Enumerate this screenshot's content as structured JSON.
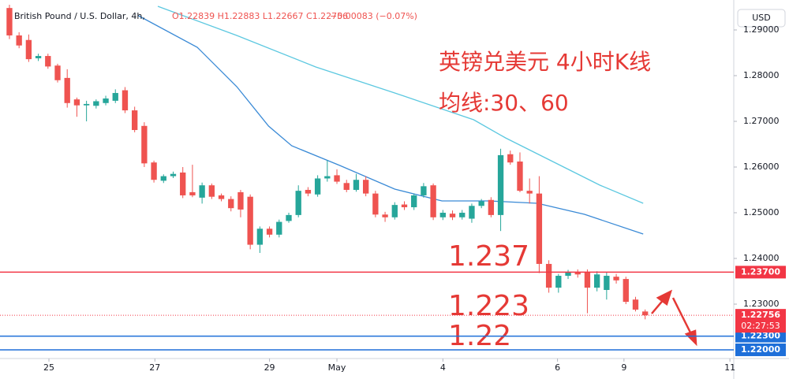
{
  "chart_data": {
    "type": "candlestick",
    "header": {
      "symbol": "British Pound / U.S. Dollar, 4h,",
      "ohlc": "O1.22839 H1.22883 L1.22667 C1.22756",
      "change": "−0.00083 (−0.07%)"
    },
    "currency": "USD",
    "annotations": {
      "title": "英镑兑美元 4小时K线",
      "subtitle": "均线:30、60",
      "level1": "1.237",
      "level2": "1.223",
      "level3": "1.22"
    },
    "up_color": "#26a69a",
    "down_color": "#ef5350",
    "open": [
      1.2948,
      1.2888,
      1.2878,
      1.2838,
      1.2843,
      1.2822,
      1.2795,
      1.2748,
      1.2735,
      1.2734,
      1.274,
      1.2745,
      1.2768,
      1.2724,
      1.269,
      1.261,
      1.257,
      1.258,
      1.2588,
      1.2545,
      1.2533,
      1.256,
      1.2538,
      1.253,
      1.2545,
      1.2535,
      1.243,
      1.2465,
      1.2452,
      1.2482,
      1.2495,
      1.255,
      1.254,
      1.2575,
      1.2582,
      1.2565,
      1.255,
      1.2572,
      1.2542,
      1.2496,
      1.249,
      1.2518,
      1.2512,
      1.2538,
      1.256,
      1.249,
      1.2498,
      1.249,
      1.2487,
      1.2515,
      1.2528,
      1.2495,
      1.2628,
      1.2612,
      1.2548,
      1.2542,
      1.2388,
      1.2336,
      1.2362,
      1.237,
      1.237,
      1.2336,
      1.2331,
      1.236,
      1.2355,
      1.231,
      1.22839
    ],
    "high": [
      1.2955,
      1.2895,
      1.289,
      1.2848,
      1.2848,
      1.2826,
      1.2814,
      1.2752,
      1.2745,
      1.2748,
      1.2756,
      1.277,
      1.2775,
      1.2732,
      1.2698,
      1.2614,
      1.2584,
      1.259,
      1.26,
      1.2605,
      1.2566,
      1.2564,
      1.2542,
      1.2536,
      1.255,
      1.254,
      1.247,
      1.247,
      1.2485,
      1.25,
      1.256,
      1.2556,
      1.2582,
      1.2615,
      1.2595,
      1.2572,
      1.2585,
      1.258,
      1.2548,
      1.2502,
      1.2523,
      1.2525,
      1.2542,
      1.2565,
      1.2564,
      1.2506,
      1.2505,
      1.2506,
      1.252,
      1.253,
      1.2534,
      1.264,
      1.2636,
      1.2632,
      1.2575,
      1.258,
      1.2396,
      1.2366,
      1.2375,
      1.2376,
      1.2376,
      1.2372,
      1.237,
      1.2366,
      1.236,
      1.2316,
      1.22883
    ],
    "low": [
      1.288,
      1.286,
      1.283,
      1.2832,
      1.2815,
      1.2785,
      1.273,
      1.271,
      1.27,
      1.2728,
      1.2735,
      1.274,
      1.2718,
      1.2676,
      1.26,
      1.2566,
      1.2565,
      1.2576,
      1.2532,
      1.2534,
      1.252,
      1.253,
      1.2525,
      1.2503,
      1.249,
      1.242,
      1.2412,
      1.2446,
      1.2446,
      1.2478,
      1.249,
      1.2536,
      1.2535,
      1.2568,
      1.2563,
      1.2545,
      1.2546,
      1.2536,
      1.249,
      1.248,
      1.2485,
      1.2506,
      1.2506,
      1.2533,
      1.2484,
      1.2484,
      1.2484,
      1.2485,
      1.2478,
      1.251,
      1.249,
      1.246,
      1.2605,
      1.2545,
      1.252,
      1.2368,
      1.2325,
      1.2325,
      1.2355,
      1.2358,
      1.228,
      1.2328,
      1.231,
      1.2345,
      1.23,
      1.2284,
      1.22667
    ],
    "close": [
      1.2888,
      1.2866,
      1.2836,
      1.2843,
      1.282,
      1.279,
      1.274,
      1.2735,
      1.2738,
      1.2744,
      1.275,
      1.2762,
      1.2724,
      1.2681,
      1.2608,
      1.2572,
      1.258,
      1.2585,
      1.2538,
      1.2538,
      1.256,
      1.2535,
      1.253,
      1.251,
      1.2507,
      1.243,
      1.2465,
      1.2452,
      1.248,
      1.2495,
      1.2548,
      1.2542,
      1.2575,
      1.258,
      1.2568,
      1.255,
      1.2572,
      1.2542,
      1.2496,
      1.249,
      1.2517,
      1.2512,
      1.2538,
      1.2558,
      1.249,
      1.25,
      1.249,
      1.25,
      1.2515,
      1.2525,
      1.2495,
      1.2626,
      1.261,
      1.2548,
      1.2542,
      1.2388,
      1.2336,
      1.2362,
      1.237,
      1.2365,
      1.2336,
      1.2365,
      1.2362,
      1.2352,
      1.2305,
      1.2288,
      1.22756
    ],
    "series": [
      {
        "color": "#5cc8e0",
        "x": [
          15.4,
          23.6,
          31.8,
          40,
          48.2,
          51.5,
          56.4,
          61.3,
          65.8
        ],
        "values": [
          1.29517,
          1.28879,
          1.2819,
          1.27621,
          1.27034,
          1.26638,
          1.26121,
          1.25603,
          1.25207
        ]
      },
      {
        "color": "#3a8ad6",
        "x": [
          13.4,
          19.5,
          23.6,
          26.9,
          29.3,
          34.3,
          40,
          44.9,
          49.8,
          54.8,
          59.7,
          65.8
        ],
        "values": [
          1.2931,
          1.28621,
          1.27759,
          1.26897,
          1.26466,
          1.26034,
          1.25517,
          1.25259,
          1.25259,
          1.25207,
          1.24966,
          1.24534
        ]
      }
    ],
    "hlines": [
      {
        "value": 1.237,
        "label": "1.23700",
        "color": "#f23645"
      },
      {
        "value": 1.223,
        "label": "1.22300",
        "color": "#1e6fd9"
      },
      {
        "value": 1.22,
        "label": "1.22000",
        "color": "#1e6fd9"
      }
    ],
    "last_price": {
      "value": 1.22756,
      "label": "1.22756",
      "countdown": "02:27:53",
      "color": "#f23645"
    },
    "xlim": [
      -0.98,
      75.2
    ],
    "ylim": [
      1.2181,
      1.29655
    ],
    "xticks": [
      {
        "value": 4.1,
        "label": "25"
      },
      {
        "value": 15.1,
        "label": "27"
      },
      {
        "value": 27.0,
        "label": "29"
      },
      {
        "value": 34.0,
        "label": "May"
      },
      {
        "value": 45.0,
        "label": "4"
      },
      {
        "value": 56.9,
        "label": "6"
      },
      {
        "value": 63.8,
        "label": "9"
      },
      {
        "value": 74.8,
        "label": "11"
      }
    ],
    "yticks": [
      {
        "value": 1.23,
        "label": "1.23000"
      },
      {
        "value": 1.24,
        "label": "1.24000"
      },
      {
        "value": 1.25,
        "label": "1.25000"
      },
      {
        "value": 1.26,
        "label": "1.26000"
      },
      {
        "value": 1.27,
        "label": "1.27000"
      },
      {
        "value": 1.28,
        "label": "1.28000"
      },
      {
        "value": 1.29,
        "label": "1.29000"
      }
    ],
    "grid": false
  }
}
